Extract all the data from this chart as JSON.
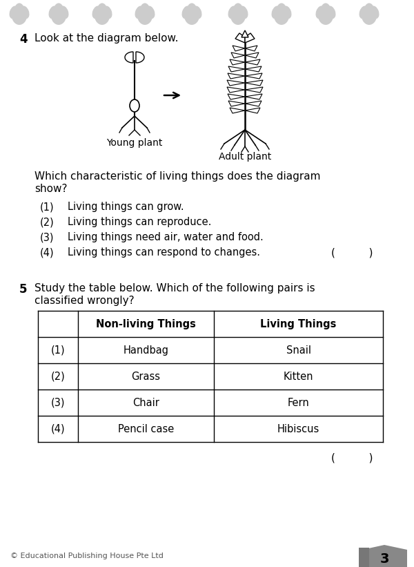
{
  "bg_color": "#ffffff",
  "header_icon_color": "#cccccc",
  "q4_number": "4",
  "q4_text": "Look at the diagram below.",
  "q4_question": "Which characteristic of living things does the diagram\nshow?",
  "q4_options": [
    [
      "(1)",
      "Living things can grow."
    ],
    [
      "(2)",
      "Living things can reproduce."
    ],
    [
      "(3)",
      "Living things need air, water and food."
    ],
    [
      "(4)",
      "Living things can respond to changes."
    ]
  ],
  "young_plant_label": "Young plant",
  "adult_plant_label": "Adult plant",
  "q5_number": "5",
  "q5_text_bold": "Study the table below. Which of the following pairs is",
  "q5_text_bold2": "classified wrongly?",
  "table_headers": [
    "Non-living Things",
    "Living Things"
  ],
  "table_rows": [
    [
      "(1)",
      "Handbag",
      "Snail"
    ],
    [
      "(2)",
      "Grass",
      "Kitten"
    ],
    [
      "(3)",
      "Chair",
      "Fern"
    ],
    [
      "(4)",
      "Pencil case",
      "Hibiscus"
    ]
  ],
  "footer_text": "© Educational Publishing House Pte Ltd",
  "page_number": "3",
  "answer_bracket_q4": "(          )",
  "answer_bracket_q5": "(          )"
}
